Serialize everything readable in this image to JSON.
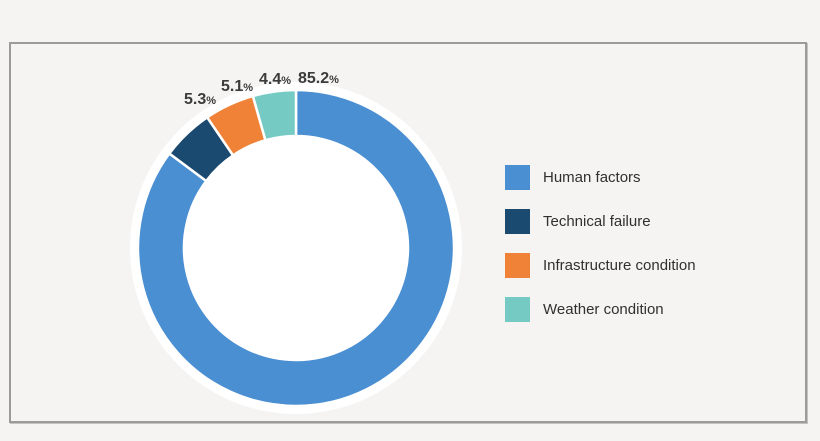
{
  "page": {
    "background_color": "#f5f4f3",
    "frame_border_color": "#9b9b9b",
    "label_text_color": "#3b3b3b",
    "legend_text_color": "#303030"
  },
  "chart_data": {
    "type": "pie",
    "subtype": "donut",
    "title": "",
    "start_angle_deg": 0,
    "direction": "clockwise",
    "legend_position": "right",
    "hole_color": "#ffffff",
    "separator_color": "#ffffff",
    "percent_sign": "%",
    "segments": [
      {
        "label": "Human factors",
        "value": 85.2,
        "value_display": "85.2",
        "color": "#4a8fd2"
      },
      {
        "label": "Technical failure",
        "value": 5.3,
        "value_display": "5.3",
        "color": "#1b4a71"
      },
      {
        "label": "Infrastructure condition",
        "value": 5.1,
        "value_display": "5.1",
        "color": "#f08238"
      },
      {
        "label": "Weather condition",
        "value": 4.4,
        "value_display": "4.4",
        "color": "#75cbc3"
      }
    ]
  }
}
